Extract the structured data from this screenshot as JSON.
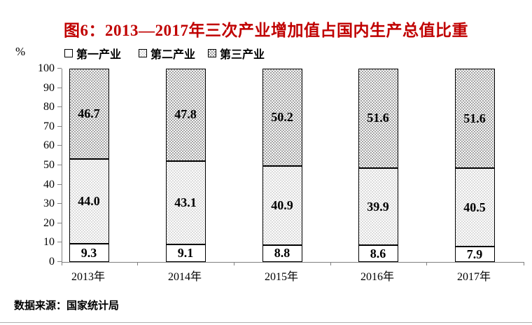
{
  "page": {
    "source_note": "数据来源：国家统计局"
  },
  "chart_data": {
    "type": "bar",
    "stacked": true,
    "title": "图6：2013—2017年三次产业增加值占国内生产总值比重",
    "title_color": "#c00000",
    "unit_label": "%",
    "categories": [
      "2013年",
      "2014年",
      "2015年",
      "2016年",
      "2017年"
    ],
    "series": [
      {
        "name": "第一产业",
        "values": [
          9.3,
          9.1,
          8.8,
          8.6,
          7.9
        ],
        "fill": "#ffffff",
        "pattern": "none"
      },
      {
        "name": "第二产业",
        "values": [
          44.0,
          43.1,
          40.9,
          39.9,
          40.5
        ],
        "fill": "#d9d9d9",
        "pattern": "white-dots"
      },
      {
        "name": "第三产业",
        "values": [
          46.7,
          47.8,
          50.2,
          51.6,
          51.6
        ],
        "fill": "#a0a0a0",
        "pattern": "white-dots"
      }
    ],
    "ylim": [
      0,
      100
    ],
    "ytick_step": 10,
    "legend_position": "top-left",
    "grid": false,
    "value_label_decimals": 1,
    "axis_color": "#808080",
    "bar_border_color": "#000000",
    "text_color": "#000000"
  }
}
